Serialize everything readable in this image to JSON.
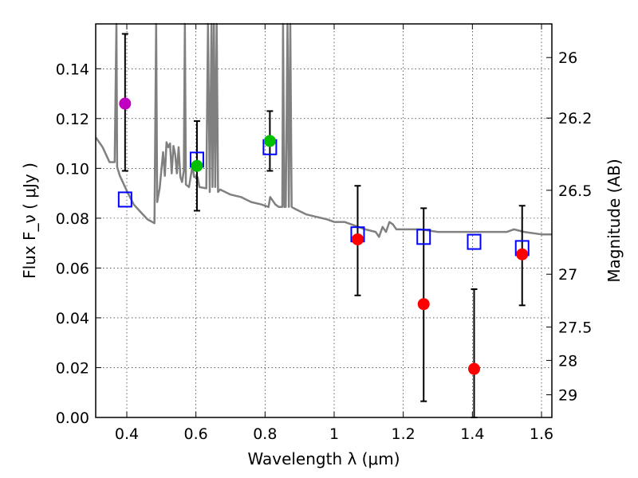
{
  "chart_data": {
    "type": "scatter",
    "xlabel": "Wavelength  λ (μm)",
    "ylabel": "Flux  F_ν  ( μJy )",
    "y2label": "Magnitude (AB)",
    "xlim": [
      0.31,
      1.63
    ],
    "ylim": [
      0.0,
      0.158
    ],
    "grid": true,
    "x_ticks": [
      0.4,
      0.6,
      0.8,
      1.0,
      1.2,
      1.4,
      1.6
    ],
    "x_tick_labels": [
      "0.4",
      "0.6",
      "0.8",
      "1",
      "1.2",
      "1.4",
      "1.6"
    ],
    "y_ticks": [
      0.0,
      0.02,
      0.04,
      0.06,
      0.08,
      0.1,
      0.12,
      0.14
    ],
    "y_tick_labels": [
      "0.00",
      "0.02",
      "0.04",
      "0.06",
      "0.08",
      "0.10",
      "0.12",
      "0.14"
    ],
    "magnitude_ticks": [
      {
        "label": "26",
        "flux": 0.1445
      },
      {
        "label": "26.2",
        "flux": 0.1202
      },
      {
        "label": "26.5",
        "flux": 0.0912
      },
      {
        "label": "27",
        "flux": 0.0575
      },
      {
        "label": "27.5",
        "flux": 0.0363
      },
      {
        "label": "28",
        "flux": 0.0229
      },
      {
        "label": "29",
        "flux": 0.0091
      }
    ],
    "observed": [
      {
        "x": 0.395,
        "y": 0.126,
        "yerr": [
          0.099,
          0.154
        ],
        "color": "#bf00bf"
      },
      {
        "x": 0.603,
        "y": 0.101,
        "yerr": [
          0.083,
          0.119
        ],
        "color": "#00bf00"
      },
      {
        "x": 0.814,
        "y": 0.111,
        "yerr": [
          0.099,
          0.123
        ],
        "color": "#00bf00"
      },
      {
        "x": 1.068,
        "y": 0.0715,
        "yerr": [
          0.049,
          0.093
        ],
        "color": "#ff0000"
      },
      {
        "x": 1.259,
        "y": 0.0455,
        "yerr": [
          0.0065,
          0.084
        ],
        "color": "#ff0000"
      },
      {
        "x": 1.405,
        "y": 0.0195,
        "yerr": [
          0.0,
          0.0515
        ],
        "color": "#ff0000"
      },
      {
        "x": 1.544,
        "y": 0.0655,
        "yerr": [
          0.045,
          0.085
        ],
        "color": "#ff0000"
      }
    ],
    "model_points": [
      {
        "x": 0.395,
        "y": 0.0875
      },
      {
        "x": 0.603,
        "y": 0.1035
      },
      {
        "x": 0.814,
        "y": 0.1085
      },
      {
        "x": 1.068,
        "y": 0.0735
      },
      {
        "x": 1.259,
        "y": 0.0725
      },
      {
        "x": 1.405,
        "y": 0.0705
      },
      {
        "x": 1.544,
        "y": 0.068
      }
    ],
    "model_spectrum": {
      "color": "#808080",
      "points": [
        [
          0.31,
          0.1125
        ],
        [
          0.33,
          0.1085
        ],
        [
          0.35,
          0.1025
        ],
        [
          0.365,
          0.1025
        ],
        [
          0.37,
          0.158
        ],
        [
          0.372,
          0.1005
        ],
        [
          0.38,
          0.097
        ],
        [
          0.4,
          0.091
        ],
        [
          0.42,
          0.0855
        ],
        [
          0.44,
          0.0825
        ],
        [
          0.46,
          0.0795
        ],
        [
          0.48,
          0.078
        ],
        [
          0.485,
          0.158
        ],
        [
          0.488,
          0.0865
        ],
        [
          0.495,
          0.092
        ],
        [
          0.505,
          0.1065
        ],
        [
          0.51,
          0.097
        ],
        [
          0.515,
          0.1105
        ],
        [
          0.52,
          0.1085
        ],
        [
          0.525,
          0.11
        ],
        [
          0.53,
          0.098
        ],
        [
          0.535,
          0.109
        ],
        [
          0.54,
          0.1055
        ],
        [
          0.545,
          0.098
        ],
        [
          0.55,
          0.1085
        ],
        [
          0.555,
          0.0965
        ],
        [
          0.56,
          0.0945
        ],
        [
          0.565,
          0.099
        ],
        [
          0.568,
          0.158
        ],
        [
          0.571,
          0.0935
        ],
        [
          0.58,
          0.0925
        ],
        [
          0.59,
          0.101
        ],
        [
          0.595,
          0.0965
        ],
        [
          0.605,
          0.0965
        ],
        [
          0.61,
          0.0925
        ],
        [
          0.63,
          0.092
        ],
        [
          0.635,
          0.158
        ],
        [
          0.64,
          0.0905
        ],
        [
          0.645,
          0.158
        ],
        [
          0.648,
          0.0925
        ],
        [
          0.652,
          0.158
        ],
        [
          0.656,
          0.0925
        ],
        [
          0.66,
          0.158
        ],
        [
          0.664,
          0.0905
        ],
        [
          0.67,
          0.0915
        ],
        [
          0.7,
          0.0895
        ],
        [
          0.73,
          0.0885
        ],
        [
          0.76,
          0.0865
        ],
        [
          0.79,
          0.0855
        ],
        [
          0.81,
          0.0845
        ],
        [
          0.815,
          0.0885
        ],
        [
          0.83,
          0.0855
        ],
        [
          0.84,
          0.0845
        ],
        [
          0.85,
          0.0845
        ],
        [
          0.852,
          0.158
        ],
        [
          0.856,
          0.0845
        ],
        [
          0.86,
          0.0845
        ],
        [
          0.865,
          0.158
        ],
        [
          0.869,
          0.0845
        ],
        [
          0.873,
          0.158
        ],
        [
          0.877,
          0.0845
        ],
        [
          0.89,
          0.0835
        ],
        [
          0.92,
          0.0815
        ],
        [
          0.95,
          0.0805
        ],
        [
          0.98,
          0.0795
        ],
        [
          1.0,
          0.0785
        ],
        [
          1.03,
          0.0785
        ],
        [
          1.05,
          0.0775
        ],
        [
          1.07,
          0.0765
        ],
        [
          1.09,
          0.0755
        ],
        [
          1.12,
          0.0745
        ],
        [
          1.13,
          0.0725
        ],
        [
          1.14,
          0.0765
        ],
        [
          1.15,
          0.0745
        ],
        [
          1.16,
          0.0785
        ],
        [
          1.17,
          0.0775
        ],
        [
          1.18,
          0.0755
        ],
        [
          1.2,
          0.0755
        ],
        [
          1.25,
          0.0755
        ],
        [
          1.3,
          0.0745
        ],
        [
          1.35,
          0.0745
        ],
        [
          1.4,
          0.0745
        ],
        [
          1.45,
          0.0745
        ],
        [
          1.5,
          0.0745
        ],
        [
          1.52,
          0.0755
        ],
        [
          1.55,
          0.0745
        ],
        [
          1.6,
          0.0735
        ],
        [
          1.63,
          0.0735
        ]
      ]
    }
  }
}
